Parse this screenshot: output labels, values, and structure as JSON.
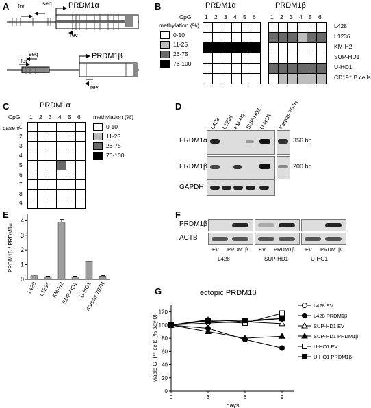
{
  "panels": {
    "A": {
      "label": "A",
      "top": {
        "for": "for",
        "seq": "seq",
        "gene": "PRDM1α",
        "rev": "rev"
      },
      "bottom": {
        "seq": "seq",
        "for": "for",
        "gene": "PRDM1β",
        "rev": "rev"
      }
    },
    "B": {
      "label": "B",
      "header_alpha": "PRDM1α",
      "header_beta": "PRDM1β",
      "cpg_label": "CpG",
      "cpg": [
        "1",
        "2",
        "3",
        "4",
        "5",
        "6"
      ],
      "legend_title": "methylation (%)",
      "legend": [
        "0-10",
        "11-25",
        "26-75",
        "76-100"
      ],
      "cells": [
        "L428",
        "L1236",
        "KM-H2",
        "SUP-HD1",
        "U-HO1",
        "CD19⁺ B cells"
      ],
      "alpha_levels": [
        [
          0,
          0,
          0,
          0,
          0,
          0
        ],
        [
          0,
          0,
          0,
          0,
          0,
          0
        ],
        [
          3,
          3,
          3,
          3,
          3,
          3
        ],
        [
          0,
          0,
          0,
          0,
          0,
          0
        ],
        [
          0,
          0,
          0,
          0,
          0,
          0
        ],
        [
          0,
          0,
          0,
          0,
          0,
          0
        ]
      ],
      "beta_levels": [
        [
          0,
          0,
          0,
          0,
          0,
          0
        ],
        [
          2,
          2,
          2,
          1,
          2,
          2
        ],
        [
          0,
          0,
          0,
          0,
          0,
          0
        ],
        [
          0,
          0,
          0,
          0,
          0,
          0
        ],
        [
          2,
          2,
          2,
          2,
          2,
          2
        ],
        [
          0,
          1,
          1,
          1,
          1,
          1
        ]
      ]
    },
    "C": {
      "label": "C",
      "header": "PRDM1α",
      "cpg_label": "CpG",
      "cpg": [
        "1",
        "2",
        "3",
        "4",
        "5",
        "6"
      ],
      "case_label": "case #",
      "cases": [
        "1",
        "2",
        "3",
        "4",
        "5",
        "6",
        "7",
        "8",
        "9"
      ],
      "legend_title": "methylation (%)",
      "legend": [
        "0-10",
        "11-25",
        "26-75",
        "76-100"
      ],
      "levels": [
        [
          0,
          0,
          0,
          0,
          0,
          0
        ],
        [
          0,
          0,
          0,
          0,
          0,
          0
        ],
        [
          0,
          0,
          0,
          0,
          0,
          0
        ],
        [
          0,
          0,
          0,
          0,
          0,
          0
        ],
        [
          0,
          0,
          0,
          2,
          0,
          0
        ],
        [
          0,
          0,
          0,
          0,
          0,
          0
        ],
        [
          0,
          0,
          0,
          0,
          0,
          0
        ],
        [
          0,
          0,
          0,
          0,
          0,
          0
        ],
        [
          0,
          0,
          0,
          0,
          0,
          0
        ]
      ]
    },
    "D": {
      "label": "D",
      "lanes": [
        "L428",
        "L1236",
        "KM-H2",
        "SUP-HD1",
        "U-HO1",
        "Karpas 707H"
      ],
      "rows": [
        "PRDM1α",
        "PRDM1β",
        "GAPDH"
      ],
      "size_1": "356 bp",
      "size_2": "200 bp"
    },
    "E": {
      "label": "E",
      "ylabel": "PRDM1β / PRDM1α",
      "yticks": [
        "0",
        "1",
        "2",
        "3",
        "4"
      ]
    },
    "F": {
      "label": "F",
      "rows": [
        "PRDM1β",
        "ACTB"
      ],
      "lane_ev": "EV",
      "lane_prdm": "PRDM1β",
      "cells": [
        "L428",
        "SUP-HD1",
        "U-HO1"
      ]
    },
    "G": {
      "label": "G",
      "title": "ectopic PRDM1β",
      "xlabel": "days",
      "ylabel": "viable GFP⁺ cells (% day 0)"
    }
  },
  "chart_data": [
    {
      "type": "bar",
      "categories": [
        "L428",
        "L1236",
        "KM-H2",
        "SUP-HD1",
        "U-HO1",
        "Karpas 707H"
      ],
      "values": [
        0.25,
        0.18,
        3.9,
        0.18,
        1.25,
        0.22
      ],
      "errors": [
        0.05,
        0.03,
        0.18,
        0.03,
        0,
        0.03
      ],
      "ylim": [
        0,
        4.3
      ],
      "ylabel": "PRDM1β / PRDM1α"
    },
    {
      "type": "line",
      "title": "ectopic PRDM1β",
      "x": [
        0,
        3,
        6,
        9
      ],
      "xlabel": "days",
      "ylabel": "viable GFP⁺ cells (% day 0)",
      "xlim": [
        0,
        10
      ],
      "ylim": [
        0,
        130
      ],
      "xticks": [
        0,
        3,
        6,
        9
      ],
      "yticks": [
        0,
        20,
        40,
        60,
        80,
        100,
        120
      ],
      "series": [
        {
          "name": "L428 EV",
          "values": [
            100,
            103,
            105,
            110
          ],
          "marker": "circle-open"
        },
        {
          "name": "L428 PRDM1β",
          "values": [
            100,
            95,
            78,
            65
          ],
          "marker": "circle-filled"
        },
        {
          "name": "SUP-HD1 EV",
          "values": [
            100,
            108,
            105,
            102
          ],
          "marker": "triangle-open"
        },
        {
          "name": "SUP-HD1 PRDM1β",
          "values": [
            100,
            90,
            80,
            83
          ],
          "marker": "triangle-filled"
        },
        {
          "name": "U-HO1 EV",
          "values": [
            100,
            106,
            103,
            118
          ],
          "marker": "square-open"
        },
        {
          "name": "U-HO1 PRDM1β",
          "values": [
            100,
            107,
            107,
            110
          ],
          "marker": "square-filled"
        }
      ],
      "legend_position": "right"
    }
  ],
  "colors": {
    "level0": "#ffffff",
    "level1": "#bdbdbd",
    "level2": "#6a6a6a",
    "level3": "#000000",
    "bar": "#9e9e9e"
  }
}
